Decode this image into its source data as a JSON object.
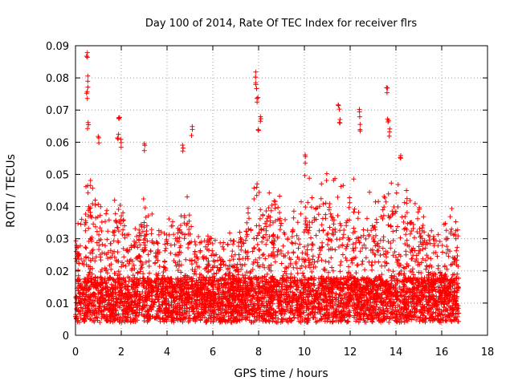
{
  "chart_data": {
    "type": "scatter",
    "title": "Day 100 of 2014, Rate Of TEC Index for receiver flrs",
    "xlabel": "GPS time / hours",
    "ylabel": "ROTI / TECUs",
    "xlim": [
      0,
      18
    ],
    "ylim": [
      0,
      0.09
    ],
    "xticks": [
      0,
      2,
      4,
      6,
      8,
      10,
      12,
      14,
      16,
      18
    ],
    "yticks": [
      0,
      0.01,
      0.02,
      0.03,
      0.04,
      0.05,
      0.06,
      0.07,
      0.08,
      0.09
    ],
    "xtick_labels": [
      "0",
      "2",
      "4",
      "6",
      "8",
      "10",
      "12",
      "14",
      "16",
      "18"
    ],
    "ytick_labels": [
      "0",
      "0.01",
      "0.02",
      "0.03",
      "0.04",
      "0.05",
      "0.06",
      "0.07",
      "0.08",
      "0.09"
    ],
    "grid": true,
    "marker": "+",
    "color": "#ff0000",
    "data_extent_hours": [
      0,
      16.75
    ],
    "envelope": {
      "x": [
        0,
        0.5,
        1,
        1.5,
        2,
        2.5,
        3,
        3.5,
        4,
        4.5,
        5,
        5.5,
        6,
        6.5,
        7,
        7.5,
        8,
        8.5,
        9,
        9.5,
        10,
        10.5,
        11,
        11.5,
        12,
        12.5,
        13,
        13.5,
        14,
        14.5,
        15,
        15.5,
        16,
        16.5,
        16.75
      ],
      "typical_max": [
        0.032,
        0.05,
        0.045,
        0.05,
        0.055,
        0.03,
        0.045,
        0.035,
        0.04,
        0.035,
        0.05,
        0.03,
        0.035,
        0.03,
        0.035,
        0.04,
        0.05,
        0.045,
        0.045,
        0.04,
        0.05,
        0.05,
        0.055,
        0.05,
        0.055,
        0.045,
        0.045,
        0.05,
        0.05,
        0.045,
        0.04,
        0.035,
        0.035,
        0.04,
        0.038
      ]
    },
    "peaks": [
      {
        "x": 0.5,
        "y": 0.088
      },
      {
        "x": 0.52,
        "y": 0.081
      },
      {
        "x": 0.5,
        "y": 0.076
      },
      {
        "x": 0.55,
        "y": 0.067
      },
      {
        "x": 1.0,
        "y": 0.063
      },
      {
        "x": 1.9,
        "y": 0.07
      },
      {
        "x": 1.85,
        "y": 0.065
      },
      {
        "x": 2.0,
        "y": 0.062
      },
      {
        "x": 3.0,
        "y": 0.061
      },
      {
        "x": 4.7,
        "y": 0.06
      },
      {
        "x": 5.1,
        "y": 0.065
      },
      {
        "x": 7.85,
        "y": 0.083
      },
      {
        "x": 7.9,
        "y": 0.08
      },
      {
        "x": 7.95,
        "y": 0.074
      },
      {
        "x": 8.1,
        "y": 0.07
      },
      {
        "x": 8.0,
        "y": 0.064
      },
      {
        "x": 10.05,
        "y": 0.057
      },
      {
        "x": 11.5,
        "y": 0.072
      },
      {
        "x": 11.55,
        "y": 0.068
      },
      {
        "x": 12.4,
        "y": 0.071
      },
      {
        "x": 12.45,
        "y": 0.066
      },
      {
        "x": 13.6,
        "y": 0.077
      },
      {
        "x": 13.65,
        "y": 0.07
      },
      {
        "x": 13.7,
        "y": 0.065
      },
      {
        "x": 14.2,
        "y": 0.058
      }
    ]
  }
}
